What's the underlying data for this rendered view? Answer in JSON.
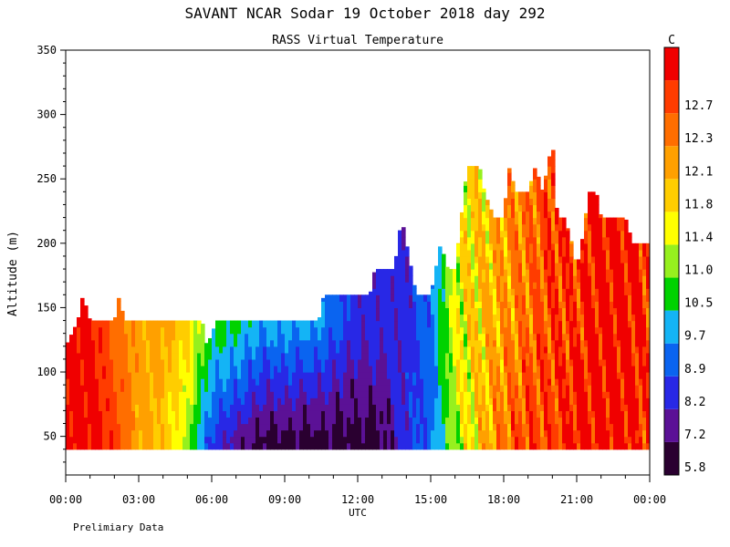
{
  "chart_data": {
    "type": "heatmap",
    "title": "SAVANT  NCAR Sodar  19 October 2018  day 292",
    "subtitle": "RASS Virtual Temperature",
    "xlabel": "UTC",
    "ylabel": "Altitude (m)",
    "footnote": "Prelimiary Data",
    "x_ticks": [
      "00:00",
      "03:00",
      "06:00",
      "09:00",
      "12:00",
      "15:00",
      "18:00",
      "21:00",
      "00:00"
    ],
    "x_range_hours": [
      0,
      24
    ],
    "y_ticks": [
      50,
      100,
      150,
      200,
      250,
      300,
      350
    ],
    "ylim": [
      20,
      350
    ],
    "colorbar": {
      "unit": "C",
      "levels": [
        {
          "label": "5.8",
          "color": "#2a0030"
        },
        {
          "label": "7.2",
          "color": "#5b1196"
        },
        {
          "label": "8.2",
          "color": "#2828e6"
        },
        {
          "label": "8.9",
          "color": "#0a64f0"
        },
        {
          "label": "9.7",
          "color": "#14b4f5"
        },
        {
          "label": "10.5",
          "color": "#00d200"
        },
        {
          "label": "11.0",
          "color": "#96f01e"
        },
        {
          "label": "11.4",
          "color": "#ffff00"
        },
        {
          "label": "11.8",
          "color": "#ffcd00"
        },
        {
          "label": "12.1",
          "color": "#ffa000"
        },
        {
          "label": "12.3",
          "color": "#ff6e00"
        },
        {
          "label": "12.7",
          "color": "#ff3c00"
        },
        {
          "label": "",
          "color": "#f00000"
        }
      ]
    },
    "top_of_data_m": [
      [
        0.0,
        120
      ],
      [
        0.5,
        140
      ],
      [
        0.7,
        160
      ],
      [
        1.0,
        140
      ],
      [
        1.8,
        140
      ],
      [
        2.0,
        140
      ],
      [
        2.2,
        160
      ],
      [
        2.4,
        140
      ],
      [
        5.6,
        140
      ],
      [
        5.8,
        120
      ],
      [
        6.2,
        140
      ],
      [
        7.0,
        140
      ],
      [
        7.5,
        140
      ],
      [
        8.0,
        140
      ],
      [
        8.5,
        140
      ],
      [
        10.4,
        140
      ],
      [
        10.6,
        160
      ],
      [
        12.5,
        160
      ],
      [
        12.7,
        180
      ],
      [
        13.5,
        180
      ],
      [
        13.8,
        220
      ],
      [
        14.0,
        200
      ],
      [
        14.4,
        160
      ],
      [
        15.0,
        160
      ],
      [
        15.4,
        200
      ],
      [
        15.7,
        180
      ],
      [
        16.0,
        180
      ],
      [
        16.5,
        260
      ],
      [
        17.0,
        260
      ],
      [
        17.2,
        240
      ],
      [
        17.6,
        220
      ],
      [
        18.0,
        220
      ],
      [
        18.2,
        260
      ],
      [
        18.5,
        240
      ],
      [
        19.0,
        240
      ],
      [
        19.3,
        260
      ],
      [
        19.6,
        240
      ],
      [
        20.0,
        280
      ],
      [
        20.2,
        220
      ],
      [
        20.5,
        220
      ],
      [
        20.8,
        200
      ],
      [
        21.0,
        180
      ],
      [
        21.2,
        200
      ],
      [
        21.5,
        240
      ],
      [
        21.8,
        240
      ],
      [
        22.0,
        220
      ],
      [
        22.5,
        220
      ],
      [
        23.0,
        220
      ],
      [
        23.3,
        200
      ],
      [
        23.7,
        200
      ],
      [
        24.0,
        200
      ]
    ],
    "time_hours": [
      0,
      1,
      2,
      3,
      4,
      5,
      6,
      7,
      8,
      9,
      10,
      11,
      12,
      13,
      14,
      15,
      16,
      17,
      18,
      19,
      20,
      21,
      22,
      23,
      24
    ],
    "level_index_near_45m": [
      12,
      12,
      11,
      9,
      8,
      6,
      2,
      1,
      0,
      0,
      0,
      0,
      0,
      0,
      2,
      3,
      6,
      8,
      10,
      11,
      11,
      12,
      12,
      12,
      11
    ],
    "level_index_near_140m": [
      12,
      12,
      10,
      9,
      9,
      8,
      5,
      5,
      4,
      4,
      4,
      3,
      2,
      2,
      2,
      3,
      7,
      8,
      9,
      10,
      11,
      11,
      12,
      12,
      11
    ]
  }
}
